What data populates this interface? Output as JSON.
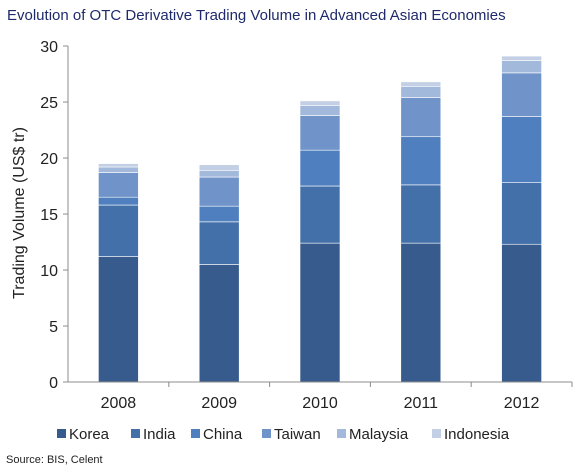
{
  "title": "Evolution of OTC Derivative Trading Volume in Advanced Asian Economies",
  "source": "Source: BIS, Celent",
  "chart_data": {
    "type": "bar",
    "stacked": true,
    "title": "Evolution of OTC Derivative Trading Volume in Advanced Asian Economies",
    "xlabel": "",
    "ylabel": "Trading Volume (US$ tr)",
    "ylim": [
      0,
      30
    ],
    "yticks": [
      0,
      5,
      10,
      15,
      20,
      25,
      30
    ],
    "grid": false,
    "legend": "bottom",
    "categories": [
      "2008",
      "2009",
      "2010",
      "2011",
      "2012"
    ],
    "series": [
      {
        "name": "Korea",
        "color": "#375b8c",
        "values": [
          11.2,
          10.5,
          12.4,
          12.4,
          12.3
        ]
      },
      {
        "name": "India",
        "color": "#4370a8",
        "values": [
          4.6,
          3.8,
          5.1,
          5.2,
          5.5
        ]
      },
      {
        "name": "China",
        "color": "#4f7fbf",
        "values": [
          0.7,
          1.4,
          3.2,
          4.3,
          5.9
        ]
      },
      {
        "name": "Taiwan",
        "color": "#7094c9",
        "values": [
          2.2,
          2.6,
          3.1,
          3.5,
          3.9
        ]
      },
      {
        "name": "Malaysia",
        "color": "#a3b9dc",
        "values": [
          0.5,
          0.6,
          0.9,
          1.0,
          1.1
        ]
      },
      {
        "name": "Indonesia",
        "color": "#c3cfe4",
        "values": [
          0.3,
          0.5,
          0.4,
          0.4,
          0.4
        ]
      }
    ]
  }
}
